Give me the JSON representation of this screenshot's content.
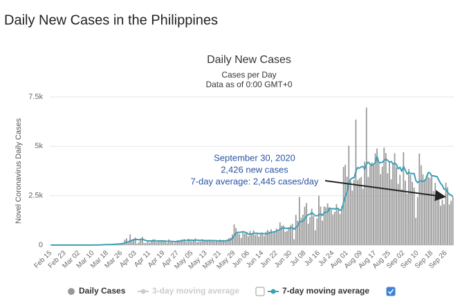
{
  "page_title": "Daily New Cases in the Philippines",
  "chart_data": {
    "type": "bar",
    "title": "Daily New Cases",
    "subtitle": "Cases per Day",
    "note": "Data as of 0:00 GMT+0",
    "y_label": "Novel Coronavirus Daily Cases",
    "ylim": [
      0,
      7500
    ],
    "yticks": [
      0,
      {
        "value": 2500,
        "label": "2.5k"
      },
      {
        "value": 5000,
        "label": "5k"
      },
      {
        "value": 7500,
        "label": "7.5k"
      }
    ],
    "grid": true,
    "categories": [
      "Feb 15",
      null,
      null,
      null,
      null,
      null,
      null,
      null,
      "Feb 23",
      null,
      null,
      null,
      null,
      null,
      null,
      null,
      "Mar 02",
      null,
      null,
      null,
      null,
      null,
      null,
      null,
      "Mar 10",
      null,
      null,
      null,
      null,
      null,
      null,
      null,
      "Mar 18",
      null,
      null,
      null,
      null,
      null,
      null,
      null,
      "Mar 26",
      null,
      null,
      null,
      null,
      null,
      null,
      null,
      "Apr 03",
      null,
      null,
      null,
      null,
      null,
      null,
      null,
      "Apr 11",
      null,
      null,
      null,
      null,
      null,
      null,
      null,
      "Apr 19",
      null,
      null,
      null,
      null,
      null,
      null,
      null,
      "Apr 27",
      null,
      null,
      null,
      null,
      null,
      null,
      null,
      "May 05",
      null,
      null,
      null,
      null,
      null,
      null,
      null,
      "May 13",
      null,
      null,
      null,
      null,
      null,
      null,
      null,
      "May 21",
      null,
      null,
      null,
      null,
      null,
      null,
      null,
      "May 29",
      null,
      null,
      null,
      null,
      null,
      null,
      null,
      "Jun 06",
      null,
      null,
      null,
      null,
      null,
      null,
      null,
      "Jun 14",
      null,
      null,
      null,
      null,
      null,
      null,
      null,
      "Jun 22",
      null,
      null,
      null,
      null,
      null,
      null,
      null,
      "Jun 30",
      null,
      null,
      null,
      null,
      null,
      null,
      null,
      "Jul 08",
      null,
      null,
      null,
      null,
      null,
      null,
      null,
      "Jul 16",
      null,
      null,
      null,
      null,
      null,
      null,
      null,
      "Jul 24",
      null,
      null,
      null,
      null,
      null,
      null,
      null,
      "Aug 01",
      null,
      null,
      null,
      null,
      null,
      null,
      null,
      "Aug 09",
      null,
      null,
      null,
      null,
      null,
      null,
      null,
      "Aug 17",
      null,
      null,
      null,
      null,
      null,
      null,
      null,
      "Aug 25",
      null,
      null,
      null,
      null,
      null,
      null,
      null,
      "Sep 02",
      null,
      null,
      null,
      null,
      null,
      null,
      null,
      "Sep 10",
      null,
      null,
      null,
      null,
      null,
      null,
      null,
      "Sep 18",
      null,
      null,
      null,
      null,
      null,
      null,
      null,
      "Sep 26",
      null,
      null,
      null,
      null
    ],
    "series": [
      {
        "name": "Daily Cases",
        "type": "bar",
        "color": "#999999",
        "values": [
          0,
          0,
          0,
          0,
          0,
          0,
          0,
          0,
          0,
          0,
          0,
          0,
          0,
          0,
          0,
          0,
          0,
          0,
          0,
          0,
          1,
          0,
          3,
          10,
          4,
          0,
          16,
          3,
          12,
          47,
          45,
          45,
          15,
          15,
          15,
          40,
          77,
          82,
          90,
          84,
          71,
          96,
          272,
          343,
          128,
          538,
          227,
          322,
          385,
          76,
          152,
          343,
          414,
          106,
          104,
          206,
          119,
          233,
          284,
          291,
          140,
          207,
          218,
          209,
          200,
          172,
          111,
          285,
          140,
          211,
          102,
          198,
          254,
          181,
          276,
          284,
          295,
          156,
          320,
          262,
          199,
          252,
          339,
          150,
          187,
          184,
          292,
          264,
          268,
          258,
          214,
          215,
          208,
          174,
          213,
          163,
          279,
          224,
          258,
          180,
          284,
          350,
          380,
          539,
          1046,
          862,
          590,
          552,
          359,
          634,
          579,
          613,
          444,
          714,
          579,
          741,
          518,
          555,
          427,
          557,
          636,
          467,
          672,
          765,
          686,
          802,
          620,
          714,
          840,
          690,
          1150,
          980,
          1000,
          670,
          720,
          900,
          1000,
          1080,
          294,
          1531,
          1232,
          2434,
          1387,
          1540,
          1943,
          2124,
          1078,
          1424,
          1841,
          1469,
          747,
          1357,
          2498,
          1951,
          1233,
          1957,
          1916,
          2110,
          1874,
          1793,
          1544,
          1678,
          2076,
          1803,
          1573,
          1963,
          3954,
          4063,
          3462,
          5032,
          3226,
          2756,
          3300,
          6352,
          3287,
          3379,
          3448,
          2862,
          4226,
          6958,
          3451,
          4008,
          4186,
          4051,
          4650,
          4890,
          4176,
          3590,
          3970,
          4935,
          4660,
          3638,
          4200,
          3333,
          4140,
          4650,
          3930,
          3100,
          3560,
          2818,
          4699,
          3258,
          2604,
          3850,
          3560,
          3200,
          2910,
          1383,
          2430,
          4640,
          4040,
          3580,
          3320,
          3530,
          3440,
          3400,
          3490,
          2730,
          3150,
          2550,
          2610,
          1990,
          2300,
          2060,
          3160,
          2930,
          2060,
          2240,
          2426
        ]
      },
      {
        "name": "7-day moving average",
        "type": "line",
        "color": "#3d9fb5",
        "checked": true,
        "values": [
          0,
          0,
          0,
          0,
          0,
          0,
          0,
          0,
          0,
          0,
          0,
          0,
          0,
          0,
          0,
          0,
          0,
          0,
          0,
          0,
          0,
          0,
          1,
          2,
          3,
          3,
          5,
          5,
          7,
          13,
          19,
          25,
          26,
          28,
          28,
          33,
          36,
          41,
          48,
          55,
          65,
          77,
          113,
          148,
          157,
          215,
          240,
          266,
          290,
          280,
          270,
          270,
          300,
          260,
          230,
          210,
          210,
          210,
          220,
          225,
          200,
          210,
          210,
          210,
          210,
          200,
          190,
          200,
          190,
          190,
          175,
          180,
          190,
          200,
          210,
          230,
          240,
          230,
          250,
          250,
          250,
          240,
          250,
          250,
          240,
          240,
          250,
          230,
          230,
          230,
          235,
          230,
          230,
          225,
          220,
          210,
          210,
          210,
          215,
          215,
          230,
          240,
          270,
          330,
          470,
          600,
          650,
          640,
          660,
          680,
          650,
          630,
          550,
          560,
          560,
          600,
          600,
          600,
          580,
          590,
          590,
          570,
          580,
          580,
          610,
          650,
          660,
          670,
          710,
          740,
          800,
          840,
          880,
          850,
          850,
          850,
          860,
          880,
          800,
          900,
          960,
          1170,
          1180,
          1210,
          1330,
          1460,
          1540,
          1560,
          1650,
          1560,
          1490,
          1480,
          1530,
          1580,
          1500,
          1640,
          1660,
          1680,
          1880,
          1830,
          1850,
          1820,
          1860,
          1850,
          1760,
          1800,
          2150,
          2460,
          2700,
          3150,
          3320,
          3400,
          3400,
          3730,
          3920,
          3890,
          3960,
          3980,
          3840,
          4100,
          4200,
          4090,
          4020,
          4100,
          4160,
          4490,
          4190,
          4170,
          4190,
          4290,
          4350,
          4290,
          4200,
          4230,
          4120,
          4140,
          4080,
          3860,
          3940,
          3740,
          3980,
          3810,
          3600,
          3680,
          3630,
          3610,
          3630,
          3270,
          3160,
          3240,
          3250,
          3210,
          3260,
          3380,
          3670,
          3650,
          3500,
          3510,
          3480,
          3470,
          3290,
          3130,
          3020,
          2830,
          2830,
          2680,
          2570,
          2530,
          2445
        ]
      }
    ],
    "hidden_series": [
      {
        "name": "3-day moving average",
        "color": "#cccccc",
        "checked": false
      }
    ],
    "annotation": {
      "lines": [
        "September 30, 2020",
        "2,426 new cases",
        "7-day average: 2,445 cases/day"
      ],
      "color": "#2a55a5"
    }
  }
}
